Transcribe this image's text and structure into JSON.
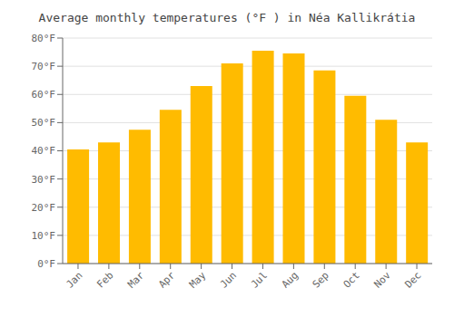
{
  "chart_data": {
    "type": "bar",
    "title": "Average monthly temperatures (°F ) in Néa Kallikrátia",
    "categories": [
      "Jan",
      "Feb",
      "Mar",
      "Apr",
      "May",
      "Jun",
      "Jul",
      "Aug",
      "Sep",
      "Oct",
      "Nov",
      "Dec"
    ],
    "values": [
      40.5,
      43.0,
      47.5,
      54.5,
      63.0,
      71.0,
      75.5,
      74.5,
      68.5,
      59.5,
      51.0,
      43.0
    ],
    "color": "#FFBB00",
    "ylim": [
      0,
      80
    ],
    "yticks": [
      {
        "value": 0,
        "label": "0°F"
      },
      {
        "value": 10,
        "label": "10°F"
      },
      {
        "value": 20,
        "label": "20°F"
      },
      {
        "value": 30,
        "label": "30°F"
      },
      {
        "value": 40,
        "label": "40°F"
      },
      {
        "value": 50,
        "label": "50°F"
      },
      {
        "value": 60,
        "label": "60°F"
      },
      {
        "value": 70,
        "label": "70°F"
      },
      {
        "value": 80,
        "label": "80°F"
      }
    ],
    "grid": true
  }
}
